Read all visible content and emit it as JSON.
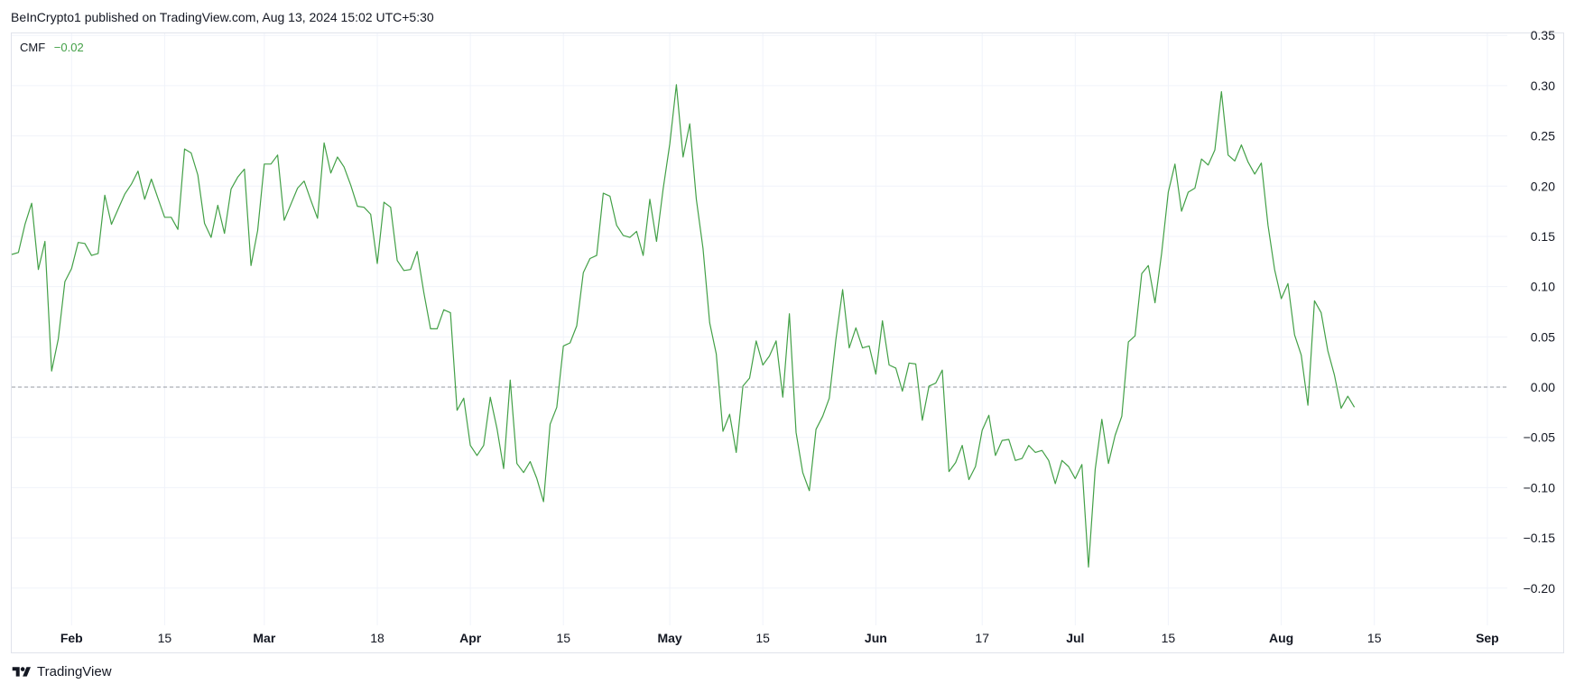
{
  "header": {
    "publisher": "BeInCrypto1 published on TradingView.com, Aug 13, 2024 15:02 UTC+5:30"
  },
  "legend": {
    "name": "CMF",
    "value": "−0.02"
  },
  "footer": {
    "brand": "TradingView"
  },
  "colors": {
    "line": "#43a047",
    "grid": "#f0f3fa",
    "zero_line": "#9598a1",
    "text": "#131722"
  },
  "chart_data": {
    "type": "line",
    "title": "",
    "series": [
      {
        "name": "CMF"
      }
    ],
    "y_ticks": [
      "0.35",
      "0.30",
      "0.25",
      "0.20",
      "0.15",
      "0.10",
      "0.05",
      "0.00",
      "−0.05",
      "−0.10",
      "−0.15",
      "−0.20"
    ],
    "y_tick_values": [
      0.35,
      0.3,
      0.25,
      0.2,
      0.15,
      0.1,
      0.05,
      0.0,
      -0.05,
      -0.1,
      -0.15,
      -0.2
    ],
    "ylim": [
      -0.237,
      0.352
    ],
    "x_ticks": [
      {
        "label": "Feb",
        "date": "2024-02-01",
        "bold": true
      },
      {
        "label": "15",
        "date": "2024-02-15",
        "bold": false
      },
      {
        "label": "Mar",
        "date": "2024-03-01",
        "bold": true
      },
      {
        "label": "18",
        "date": "2024-03-18",
        "bold": false
      },
      {
        "label": "Apr",
        "date": "2024-04-01",
        "bold": true
      },
      {
        "label": "15",
        "date": "2024-04-15",
        "bold": false
      },
      {
        "label": "May",
        "date": "2024-05-01",
        "bold": true
      },
      {
        "label": "15",
        "date": "2024-05-15",
        "bold": false
      },
      {
        "label": "Jun",
        "date": "2024-06-01",
        "bold": true
      },
      {
        "label": "17",
        "date": "2024-06-17",
        "bold": false
      },
      {
        "label": "Jul",
        "date": "2024-07-01",
        "bold": true
      },
      {
        "label": "15",
        "date": "2024-07-15",
        "bold": false
      },
      {
        "label": "Aug",
        "date": "2024-08-01",
        "bold": true
      },
      {
        "label": "15",
        "date": "2024-08-15",
        "bold": false
      },
      {
        "label": "Sep",
        "date": "2024-09-01",
        "bold": true
      }
    ],
    "xlim": [
      "2024-01-23",
      "2024-09-04"
    ],
    "zero_line": 0.0,
    "grid": true,
    "data": [
      [
        "2024-01-23",
        0.132
      ],
      [
        "2024-01-24",
        0.134
      ],
      [
        "2024-01-25",
        0.162
      ],
      [
        "2024-01-26",
        0.183
      ],
      [
        "2024-01-27",
        0.117
      ],
      [
        "2024-01-28",
        0.145
      ],
      [
        "2024-01-29",
        0.016
      ],
      [
        "2024-01-30",
        0.048
      ],
      [
        "2024-01-31",
        0.105
      ],
      [
        "2024-02-01",
        0.118
      ],
      [
        "2024-02-02",
        0.144
      ],
      [
        "2024-02-03",
        0.143
      ],
      [
        "2024-02-04",
        0.131
      ],
      [
        "2024-02-05",
        0.133
      ],
      [
        "2024-02-06",
        0.191
      ],
      [
        "2024-02-07",
        0.162
      ],
      [
        "2024-02-08",
        0.177
      ],
      [
        "2024-02-09",
        0.192
      ],
      [
        "2024-02-10",
        0.202
      ],
      [
        "2024-02-11",
        0.215
      ],
      [
        "2024-02-12",
        0.187
      ],
      [
        "2024-02-13",
        0.207
      ],
      [
        "2024-02-14",
        0.188
      ],
      [
        "2024-02-15",
        0.169
      ],
      [
        "2024-02-16",
        0.169
      ],
      [
        "2024-02-17",
        0.157
      ],
      [
        "2024-02-18",
        0.237
      ],
      [
        "2024-02-19",
        0.233
      ],
      [
        "2024-02-20",
        0.211
      ],
      [
        "2024-02-21",
        0.163
      ],
      [
        "2024-02-22",
        0.149
      ],
      [
        "2024-02-23",
        0.181
      ],
      [
        "2024-02-24",
        0.153
      ],
      [
        "2024-02-25",
        0.197
      ],
      [
        "2024-02-26",
        0.209
      ],
      [
        "2024-02-27",
        0.217
      ],
      [
        "2024-02-28",
        0.121
      ],
      [
        "2024-02-29",
        0.156
      ],
      [
        "2024-03-01",
        0.222
      ],
      [
        "2024-03-02",
        0.222
      ],
      [
        "2024-03-03",
        0.231
      ],
      [
        "2024-03-04",
        0.166
      ],
      [
        "2024-03-05",
        0.182
      ],
      [
        "2024-03-06",
        0.198
      ],
      [
        "2024-03-07",
        0.205
      ],
      [
        "2024-03-08",
        0.186
      ],
      [
        "2024-03-09",
        0.168
      ],
      [
        "2024-03-10",
        0.243
      ],
      [
        "2024-03-11",
        0.213
      ],
      [
        "2024-03-12",
        0.229
      ],
      [
        "2024-03-13",
        0.219
      ],
      [
        "2024-03-14",
        0.201
      ],
      [
        "2024-03-15",
        0.18
      ],
      [
        "2024-03-16",
        0.179
      ],
      [
        "2024-03-17",
        0.172
      ],
      [
        "2024-03-18",
        0.123
      ],
      [
        "2024-03-19",
        0.184
      ],
      [
        "2024-03-20",
        0.179
      ],
      [
        "2024-03-21",
        0.126
      ],
      [
        "2024-03-22",
        0.116
      ],
      [
        "2024-03-23",
        0.117
      ],
      [
        "2024-03-24",
        0.135
      ],
      [
        "2024-03-25",
        0.094
      ],
      [
        "2024-03-26",
        0.058
      ],
      [
        "2024-03-27",
        0.058
      ],
      [
        "2024-03-28",
        0.077
      ],
      [
        "2024-03-29",
        0.074
      ],
      [
        "2024-03-30",
        -0.023
      ],
      [
        "2024-03-31",
        -0.011
      ],
      [
        "2024-04-01",
        -0.058
      ],
      [
        "2024-04-02",
        -0.068
      ],
      [
        "2024-04-03",
        -0.058
      ],
      [
        "2024-04-04",
        -0.01
      ],
      [
        "2024-04-05",
        -0.041
      ],
      [
        "2024-04-06",
        -0.081
      ],
      [
        "2024-04-07",
        0.007
      ],
      [
        "2024-04-08",
        -0.076
      ],
      [
        "2024-04-09",
        -0.085
      ],
      [
        "2024-04-10",
        -0.074
      ],
      [
        "2024-04-11",
        -0.091
      ],
      [
        "2024-04-12",
        -0.114
      ],
      [
        "2024-04-13",
        -0.037
      ],
      [
        "2024-04-14",
        -0.02
      ],
      [
        "2024-04-15",
        0.041
      ],
      [
        "2024-04-16",
        0.044
      ],
      [
        "2024-04-17",
        0.061
      ],
      [
        "2024-04-18",
        0.114
      ],
      [
        "2024-04-19",
        0.128
      ],
      [
        "2024-04-20",
        0.131
      ],
      [
        "2024-04-21",
        0.193
      ],
      [
        "2024-04-22",
        0.19
      ],
      [
        "2024-04-23",
        0.161
      ],
      [
        "2024-04-24",
        0.151
      ],
      [
        "2024-04-25",
        0.149
      ],
      [
        "2024-04-26",
        0.155
      ],
      [
        "2024-04-27",
        0.131
      ],
      [
        "2024-04-28",
        0.187
      ],
      [
        "2024-04-29",
        0.145
      ],
      [
        "2024-04-30",
        0.197
      ],
      [
        "2024-05-01",
        0.242
      ],
      [
        "2024-05-02",
        0.301
      ],
      [
        "2024-05-03",
        0.229
      ],
      [
        "2024-05-04",
        0.262
      ],
      [
        "2024-05-05",
        0.187
      ],
      [
        "2024-05-06",
        0.138
      ],
      [
        "2024-05-07",
        0.064
      ],
      [
        "2024-05-08",
        0.033
      ],
      [
        "2024-05-09",
        -0.044
      ],
      [
        "2024-05-10",
        -0.027
      ],
      [
        "2024-05-11",
        -0.065
      ],
      [
        "2024-05-12",
        0.001
      ],
      [
        "2024-05-13",
        0.009
      ],
      [
        "2024-05-14",
        0.046
      ],
      [
        "2024-05-15",
        0.022
      ],
      [
        "2024-05-16",
        0.031
      ],
      [
        "2024-05-17",
        0.046
      ],
      [
        "2024-05-18",
        -0.01
      ],
      [
        "2024-05-19",
        0.073
      ],
      [
        "2024-05-20",
        -0.045
      ],
      [
        "2024-05-21",
        -0.085
      ],
      [
        "2024-05-22",
        -0.103
      ],
      [
        "2024-05-23",
        -0.042
      ],
      [
        "2024-05-24",
        -0.029
      ],
      [
        "2024-05-25",
        -0.011
      ],
      [
        "2024-05-26",
        0.048
      ],
      [
        "2024-05-27",
        0.097
      ],
      [
        "2024-05-28",
        0.039
      ],
      [
        "2024-05-29",
        0.059
      ],
      [
        "2024-05-30",
        0.039
      ],
      [
        "2024-05-31",
        0.041
      ],
      [
        "2024-06-01",
        0.013
      ],
      [
        "2024-06-02",
        0.066
      ],
      [
        "2024-06-03",
        0.022
      ],
      [
        "2024-06-04",
        0.019
      ],
      [
        "2024-06-05",
        -0.004
      ],
      [
        "2024-06-06",
        0.024
      ],
      [
        "2024-06-07",
        0.023
      ],
      [
        "2024-06-08",
        -0.033
      ],
      [
        "2024-06-09",
        0.001
      ],
      [
        "2024-06-10",
        0.004
      ],
      [
        "2024-06-11",
        0.017
      ],
      [
        "2024-06-12",
        -0.084
      ],
      [
        "2024-06-13",
        -0.075
      ],
      [
        "2024-06-14",
        -0.058
      ],
      [
        "2024-06-15",
        -0.092
      ],
      [
        "2024-06-16",
        -0.079
      ],
      [
        "2024-06-17",
        -0.043
      ],
      [
        "2024-06-18",
        -0.028
      ],
      [
        "2024-06-19",
        -0.068
      ],
      [
        "2024-06-20",
        -0.053
      ],
      [
        "2024-06-21",
        -0.052
      ],
      [
        "2024-06-22",
        -0.073
      ],
      [
        "2024-06-23",
        -0.071
      ],
      [
        "2024-06-24",
        -0.058
      ],
      [
        "2024-06-25",
        -0.065
      ],
      [
        "2024-06-26",
        -0.063
      ],
      [
        "2024-06-27",
        -0.073
      ],
      [
        "2024-06-28",
        -0.096
      ],
      [
        "2024-06-29",
        -0.073
      ],
      [
        "2024-06-30",
        -0.079
      ],
      [
        "2024-07-01",
        -0.091
      ],
      [
        "2024-07-02",
        -0.077
      ],
      [
        "2024-07-03",
        -0.179
      ],
      [
        "2024-07-04",
        -0.082
      ],
      [
        "2024-07-05",
        -0.032
      ],
      [
        "2024-07-06",
        -0.076
      ],
      [
        "2024-07-07",
        -0.048
      ],
      [
        "2024-07-08",
        -0.029
      ],
      [
        "2024-07-09",
        0.045
      ],
      [
        "2024-07-10",
        0.051
      ],
      [
        "2024-07-11",
        0.113
      ],
      [
        "2024-07-12",
        0.121
      ],
      [
        "2024-07-13",
        0.084
      ],
      [
        "2024-07-14",
        0.133
      ],
      [
        "2024-07-15",
        0.194
      ],
      [
        "2024-07-16",
        0.222
      ],
      [
        "2024-07-17",
        0.175
      ],
      [
        "2024-07-18",
        0.194
      ],
      [
        "2024-07-19",
        0.198
      ],
      [
        "2024-07-20",
        0.227
      ],
      [
        "2024-07-21",
        0.221
      ],
      [
        "2024-07-22",
        0.236
      ],
      [
        "2024-07-23",
        0.294
      ],
      [
        "2024-07-24",
        0.231
      ],
      [
        "2024-07-25",
        0.225
      ],
      [
        "2024-07-26",
        0.241
      ],
      [
        "2024-07-27",
        0.224
      ],
      [
        "2024-07-28",
        0.212
      ],
      [
        "2024-07-29",
        0.223
      ],
      [
        "2024-07-30",
        0.161
      ],
      [
        "2024-07-31",
        0.117
      ],
      [
        "2024-08-01",
        0.088
      ],
      [
        "2024-08-02",
        0.103
      ],
      [
        "2024-08-03",
        0.052
      ],
      [
        "2024-08-04",
        0.032
      ],
      [
        "2024-08-05",
        -0.018
      ],
      [
        "2024-08-06",
        0.086
      ],
      [
        "2024-08-07",
        0.074
      ],
      [
        "2024-08-08",
        0.036
      ],
      [
        "2024-08-09",
        0.012
      ],
      [
        "2024-08-10",
        -0.021
      ],
      [
        "2024-08-11",
        -0.009
      ],
      [
        "2024-08-12",
        -0.02
      ]
    ]
  }
}
